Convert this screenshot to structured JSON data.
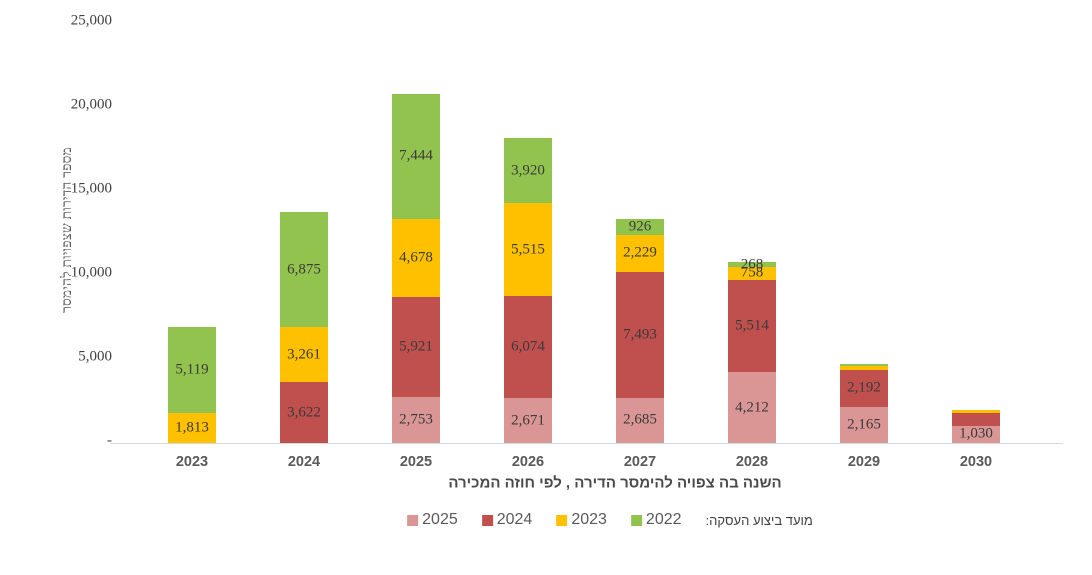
{
  "chart_data": {
    "type": "bar",
    "subtype": "stacked",
    "title": "",
    "xlabel": "השנה בה צפויה להימסר הדירה , לפי חוזה המכירה",
    "ylabel": "מספר הדירות שצפויות להימסר",
    "ylim": [
      0,
      25000
    ],
    "grid": false,
    "legend_position": "bottom",
    "legend_title": "מועד ביצוע העסקה:",
    "categories": [
      "2023",
      "2024",
      "2025",
      "2026",
      "2027",
      "2028",
      "2029",
      "2030"
    ],
    "yticks": [
      {
        "label": "25,000",
        "value": 25000
      },
      {
        "label": "20,000",
        "value": 20000
      },
      {
        "label": "15,000",
        "value": 15000
      },
      {
        "label": "10,000",
        "value": 10000
      },
      {
        "label": "5,000",
        "value": 5000
      },
      {
        "label": "-",
        "value": 0
      }
    ],
    "series": [
      {
        "name": "2025",
        "color": "#D99694",
        "values": [
          0,
          0,
          2753,
          2671,
          2685,
          4212,
          2165,
          1030
        ],
        "labels": [
          null,
          null,
          "2,753",
          "2,671",
          "2,685",
          "4,212",
          "2,165",
          "1,030"
        ]
      },
      {
        "name": "2024",
        "color": "#C0504D",
        "values": [
          0,
          3622,
          5921,
          6074,
          7493,
          5514,
          2192,
          780
        ],
        "labels": [
          null,
          "3,622",
          "5,921",
          "6,074",
          "7,493",
          "5,514",
          "2,192",
          null
        ]
      },
      {
        "name": "2023",
        "color": "#FFC000",
        "values": [
          1813,
          3261,
          4678,
          5515,
          2229,
          758,
          250,
          140
        ],
        "labels": [
          "1,813",
          "3,261",
          "4,678",
          "5,515",
          "2,229",
          "758",
          null,
          null
        ]
      },
      {
        "name": "2022",
        "color": "#92C34E",
        "values": [
          5119,
          6875,
          7444,
          3920,
          926,
          268,
          80,
          0
        ],
        "labels": [
          "5,119",
          "6,875",
          "7,444",
          "3,920",
          "926",
          "268",
          null,
          null
        ]
      }
    ]
  }
}
